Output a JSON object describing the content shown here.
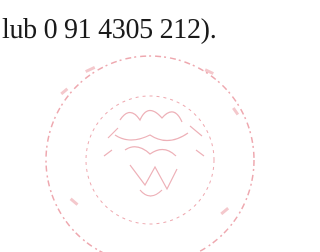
{
  "document": {
    "text_line": "lub 0 91 4305 212)."
  }
}
